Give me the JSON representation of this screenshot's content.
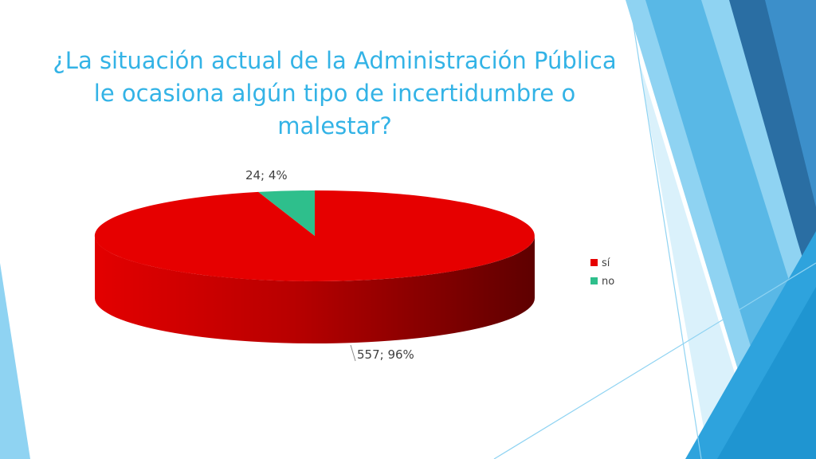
{
  "slide": {
    "title": "¿La situación actual de la Administración Pública le ocasiona algún tipo de incertidumbre o malestar?"
  },
  "colors": {
    "title": "#33b3e6",
    "si": "#e60000",
    "no": "#2ebf8c",
    "decor_dark": "#2a6ea3",
    "decor_mid": "#2ea3dd",
    "decor_light": "#8fd3f2"
  },
  "chart_data": {
    "type": "pie",
    "style": "3d",
    "categories": [
      "sí",
      "no"
    ],
    "values": [
      557,
      24
    ],
    "percents": [
      96,
      4
    ],
    "data_labels": [
      "557; 96%",
      "24; 4%"
    ],
    "colors": [
      "#e60000",
      "#2ebf8c"
    ],
    "legend": {
      "position": "right",
      "entries": [
        "sí",
        "no"
      ]
    }
  }
}
